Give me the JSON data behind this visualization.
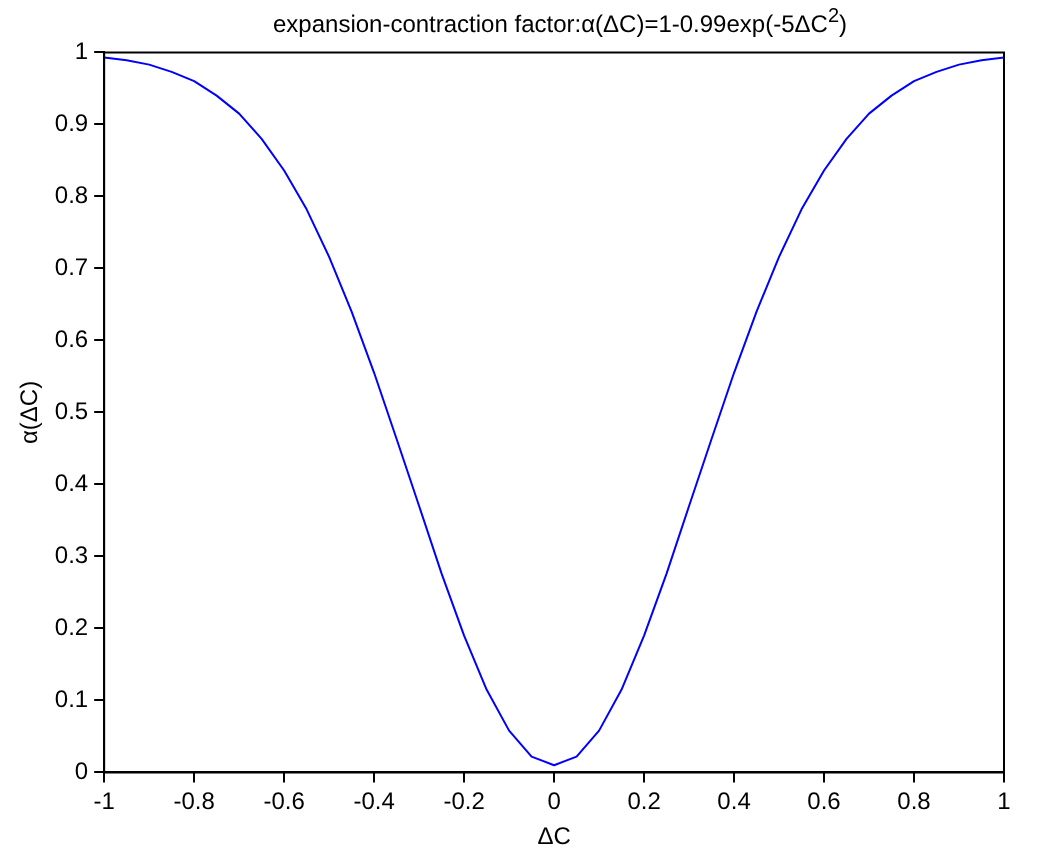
{
  "chart_data": {
    "type": "line",
    "title": "expansion-contraction factor:α(ΔC)=1-0.99exp(-5ΔC$^{2}$)",
    "xlabel": "ΔC",
    "ylabel": "α(ΔC)",
    "x": [
      -1,
      -0.95,
      -0.9,
      -0.85,
      -0.8,
      -0.75,
      -0.7,
      -0.65,
      -0.6,
      -0.55,
      -0.5,
      -0.45,
      -0.4,
      -0.35,
      -0.3,
      -0.25,
      -0.2,
      -0.15,
      -0.1,
      -0.05,
      0,
      0.05,
      0.1,
      0.15,
      0.2,
      0.25,
      0.3,
      0.35,
      0.4,
      0.45,
      0.5,
      0.55,
      0.6,
      0.65,
      0.7,
      0.75,
      0.8,
      0.85,
      0.9,
      0.95,
      1
    ],
    "series": [
      {
        "color": "#0000ff",
        "values": [
          0.993,
          0.989,
          0.983,
          0.973,
          0.96,
          0.94,
          0.915,
          0.88,
          0.836,
          0.782,
          0.716,
          0.64,
          0.555,
          0.463,
          0.37,
          0.276,
          0.19,
          0.115,
          0.058,
          0.022,
          0.01,
          0.022,
          0.058,
          0.115,
          0.19,
          0.276,
          0.37,
          0.463,
          0.555,
          0.64,
          0.716,
          0.782,
          0.836,
          0.88,
          0.915,
          0.94,
          0.96,
          0.973,
          0.983,
          0.989,
          0.993
        ]
      }
    ],
    "xlim": [
      -1,
      1
    ],
    "xticks": [
      -1,
      -0.8,
      -0.6,
      -0.4,
      -0.2,
      0,
      0.2,
      0.4,
      0.6,
      0.8,
      1
    ],
    "ylim": [
      0,
      1
    ],
    "yticks": [
      0,
      0.1,
      0.2,
      0.3,
      0.4,
      0.5,
      0.6,
      0.7,
      0.8,
      0.9,
      1
    ],
    "grid": false,
    "legend": false,
    "marker": "none",
    "line_style": "solid"
  }
}
